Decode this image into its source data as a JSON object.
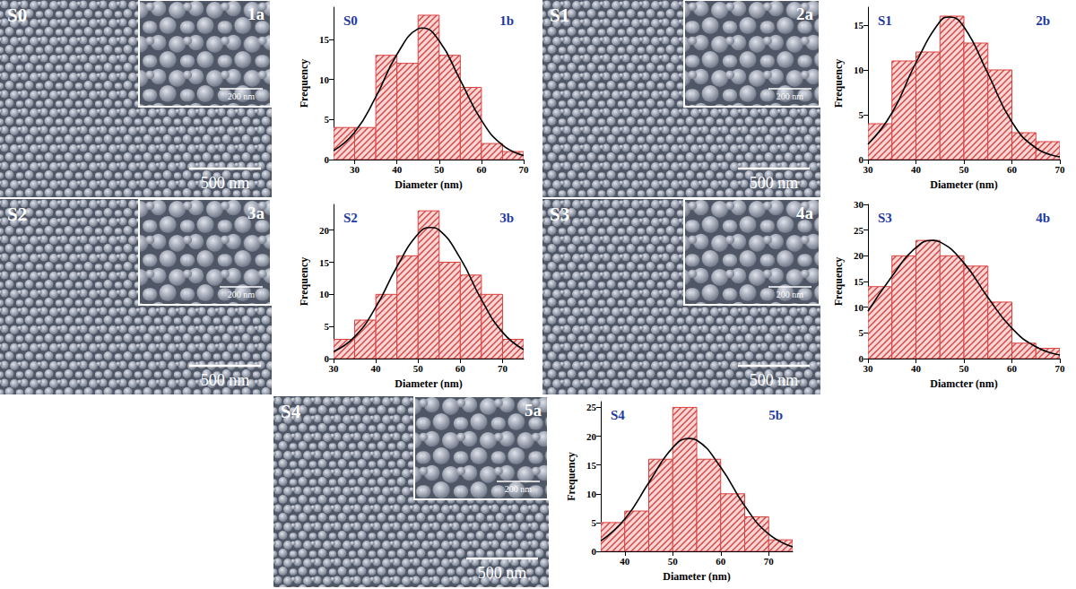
{
  "chart_data": [
    {
      "type": "histogram",
      "title": "S0",
      "panel": "1b",
      "xlabel": "Diameter (nm)",
      "ylabel": "Frequency",
      "bins": [
        25,
        30,
        35,
        40,
        45,
        50,
        55,
        60,
        65,
        70
      ],
      "values": [
        4,
        4,
        13,
        12,
        18,
        13,
        9,
        2,
        1
      ],
      "color": "#d9413f",
      "xlim": [
        25,
        70
      ],
      "xticks": [
        30,
        40,
        50,
        60,
        70
      ],
      "ylim": [
        0,
        19
      ],
      "yticks": [
        0,
        5,
        10,
        15
      ],
      "fit": {
        "color": "#000000",
        "x": [
          25,
          30,
          35,
          40,
          45,
          46,
          50,
          55,
          60,
          65,
          70
        ],
        "y": [
          1.1,
          3.4,
          7.8,
          13.1,
          16.3,
          16.4,
          14.8,
          9.9,
          4.9,
          1.8,
          0.5
        ]
      }
    },
    {
      "type": "histogram",
      "title": "S1",
      "panel": "2b",
      "xlabel": "Diameter (nm)",
      "ylabel": "Frequency",
      "bins": [
        30,
        35,
        40,
        45,
        50,
        55,
        60,
        65,
        70
      ],
      "values": [
        4,
        11,
        12,
        16,
        13,
        10,
        3,
        2
      ],
      "color": "#d9413f",
      "xlim": [
        30,
        70
      ],
      "xticks": [
        30,
        40,
        50,
        60,
        70
      ],
      "ylim": [
        0,
        17
      ],
      "yticks": [
        0,
        5,
        10,
        15
      ],
      "fit": {
        "color": "#000000",
        "x": [
          30,
          35,
          40,
          45,
          47,
          50,
          55,
          60,
          65,
          70
        ],
        "y": [
          1.7,
          5.2,
          10.8,
          15.4,
          15.9,
          14.8,
          9.6,
          4.2,
          1.3,
          0.3
        ]
      }
    },
    {
      "type": "histogram",
      "title": "S2",
      "panel": "3b",
      "xlabel": "Diameter (nm)",
      "ylabel": "Frequency",
      "bins": [
        30,
        35,
        40,
        45,
        50,
        55,
        60,
        65,
        70,
        75
      ],
      "values": [
        3,
        6,
        10,
        16,
        23,
        15,
        13,
        10,
        3
      ],
      "color": "#d9413f",
      "xlim": [
        30,
        75
      ],
      "xticks": [
        30,
        40,
        50,
        60,
        70
      ],
      "ylim": [
        0,
        24
      ],
      "yticks": [
        0,
        5,
        10,
        15,
        20
      ],
      "fit": {
        "color": "#000000",
        "x": [
          30,
          35,
          40,
          45,
          50,
          53,
          55,
          60,
          65,
          70,
          75
        ],
        "y": [
          1.1,
          3.4,
          8.0,
          14.3,
          19.4,
          20.4,
          20.0,
          15.6,
          9.2,
          4.1,
          1.4
        ]
      }
    },
    {
      "type": "histogram",
      "title": "S3",
      "panel": "4b",
      "xlabel": "Diamcter (nm)",
      "ylabel": "Frequency",
      "bins": [
        30,
        35,
        40,
        45,
        50,
        55,
        60,
        65,
        70
      ],
      "values": [
        14,
        20,
        23,
        20,
        18,
        11,
        3,
        2
      ],
      "color": "#d9413f",
      "xlim": [
        30,
        70
      ],
      "xticks": [
        30,
        40,
        50,
        60,
        70
      ],
      "ylim": [
        0,
        30
      ],
      "yticks": [
        0,
        5,
        10,
        15,
        20,
        25,
        30
      ],
      "fit": {
        "color": "#000000",
        "x": [
          30,
          35,
          40,
          43.5,
          45,
          50,
          55,
          60,
          65,
          70
        ],
        "y": [
          9.2,
          16.0,
          21.6,
          23.0,
          22.7,
          18.6,
          11.9,
          5.9,
          2.3,
          0.7
        ]
      }
    },
    {
      "type": "histogram",
      "title": "S4",
      "panel": "5b",
      "xlabel": "Diameter (nm)",
      "ylabel": "Frequency",
      "bins": [
        35,
        40,
        45,
        50,
        55,
        60,
        65,
        70,
        75
      ],
      "values": [
        5,
        7,
        16,
        25,
        16,
        10,
        6,
        2
      ],
      "color": "#d9413f",
      "xlim": [
        35,
        75
      ],
      "xticks": [
        40,
        50,
        60,
        70
      ],
      "ylim": [
        0,
        26
      ],
      "yticks": [
        0,
        5,
        10,
        15,
        20,
        25
      ],
      "fit": {
        "color": "#000000",
        "x": [
          35,
          40,
          45,
          50,
          53.5,
          55,
          60,
          65,
          70,
          75
        ],
        "y": [
          1.8,
          5.6,
          11.9,
          18.0,
          19.6,
          19.3,
          14.6,
          7.9,
          3.0,
          0.8
        ]
      }
    }
  ],
  "sem_images": [
    {
      "label": "S0",
      "panel": "1a",
      "scale_bar": "500 nm",
      "inset_scale_bar": "200 nm"
    },
    {
      "label": "S1",
      "panel": "2a",
      "scale_bar": "500 nm",
      "inset_scale_bar": "200 nm"
    },
    {
      "label": "S2",
      "panel": "3a",
      "scale_bar": "500 nm",
      "inset_scale_bar": "200 nm"
    },
    {
      "label": "S3",
      "panel": "4a",
      "scale_bar": "500 nm",
      "inset_scale_bar": "200 nm"
    },
    {
      "label": "S4",
      "panel": "5a",
      "scale_bar": "500 nm",
      "inset_scale_bar": "200 nm"
    }
  ]
}
